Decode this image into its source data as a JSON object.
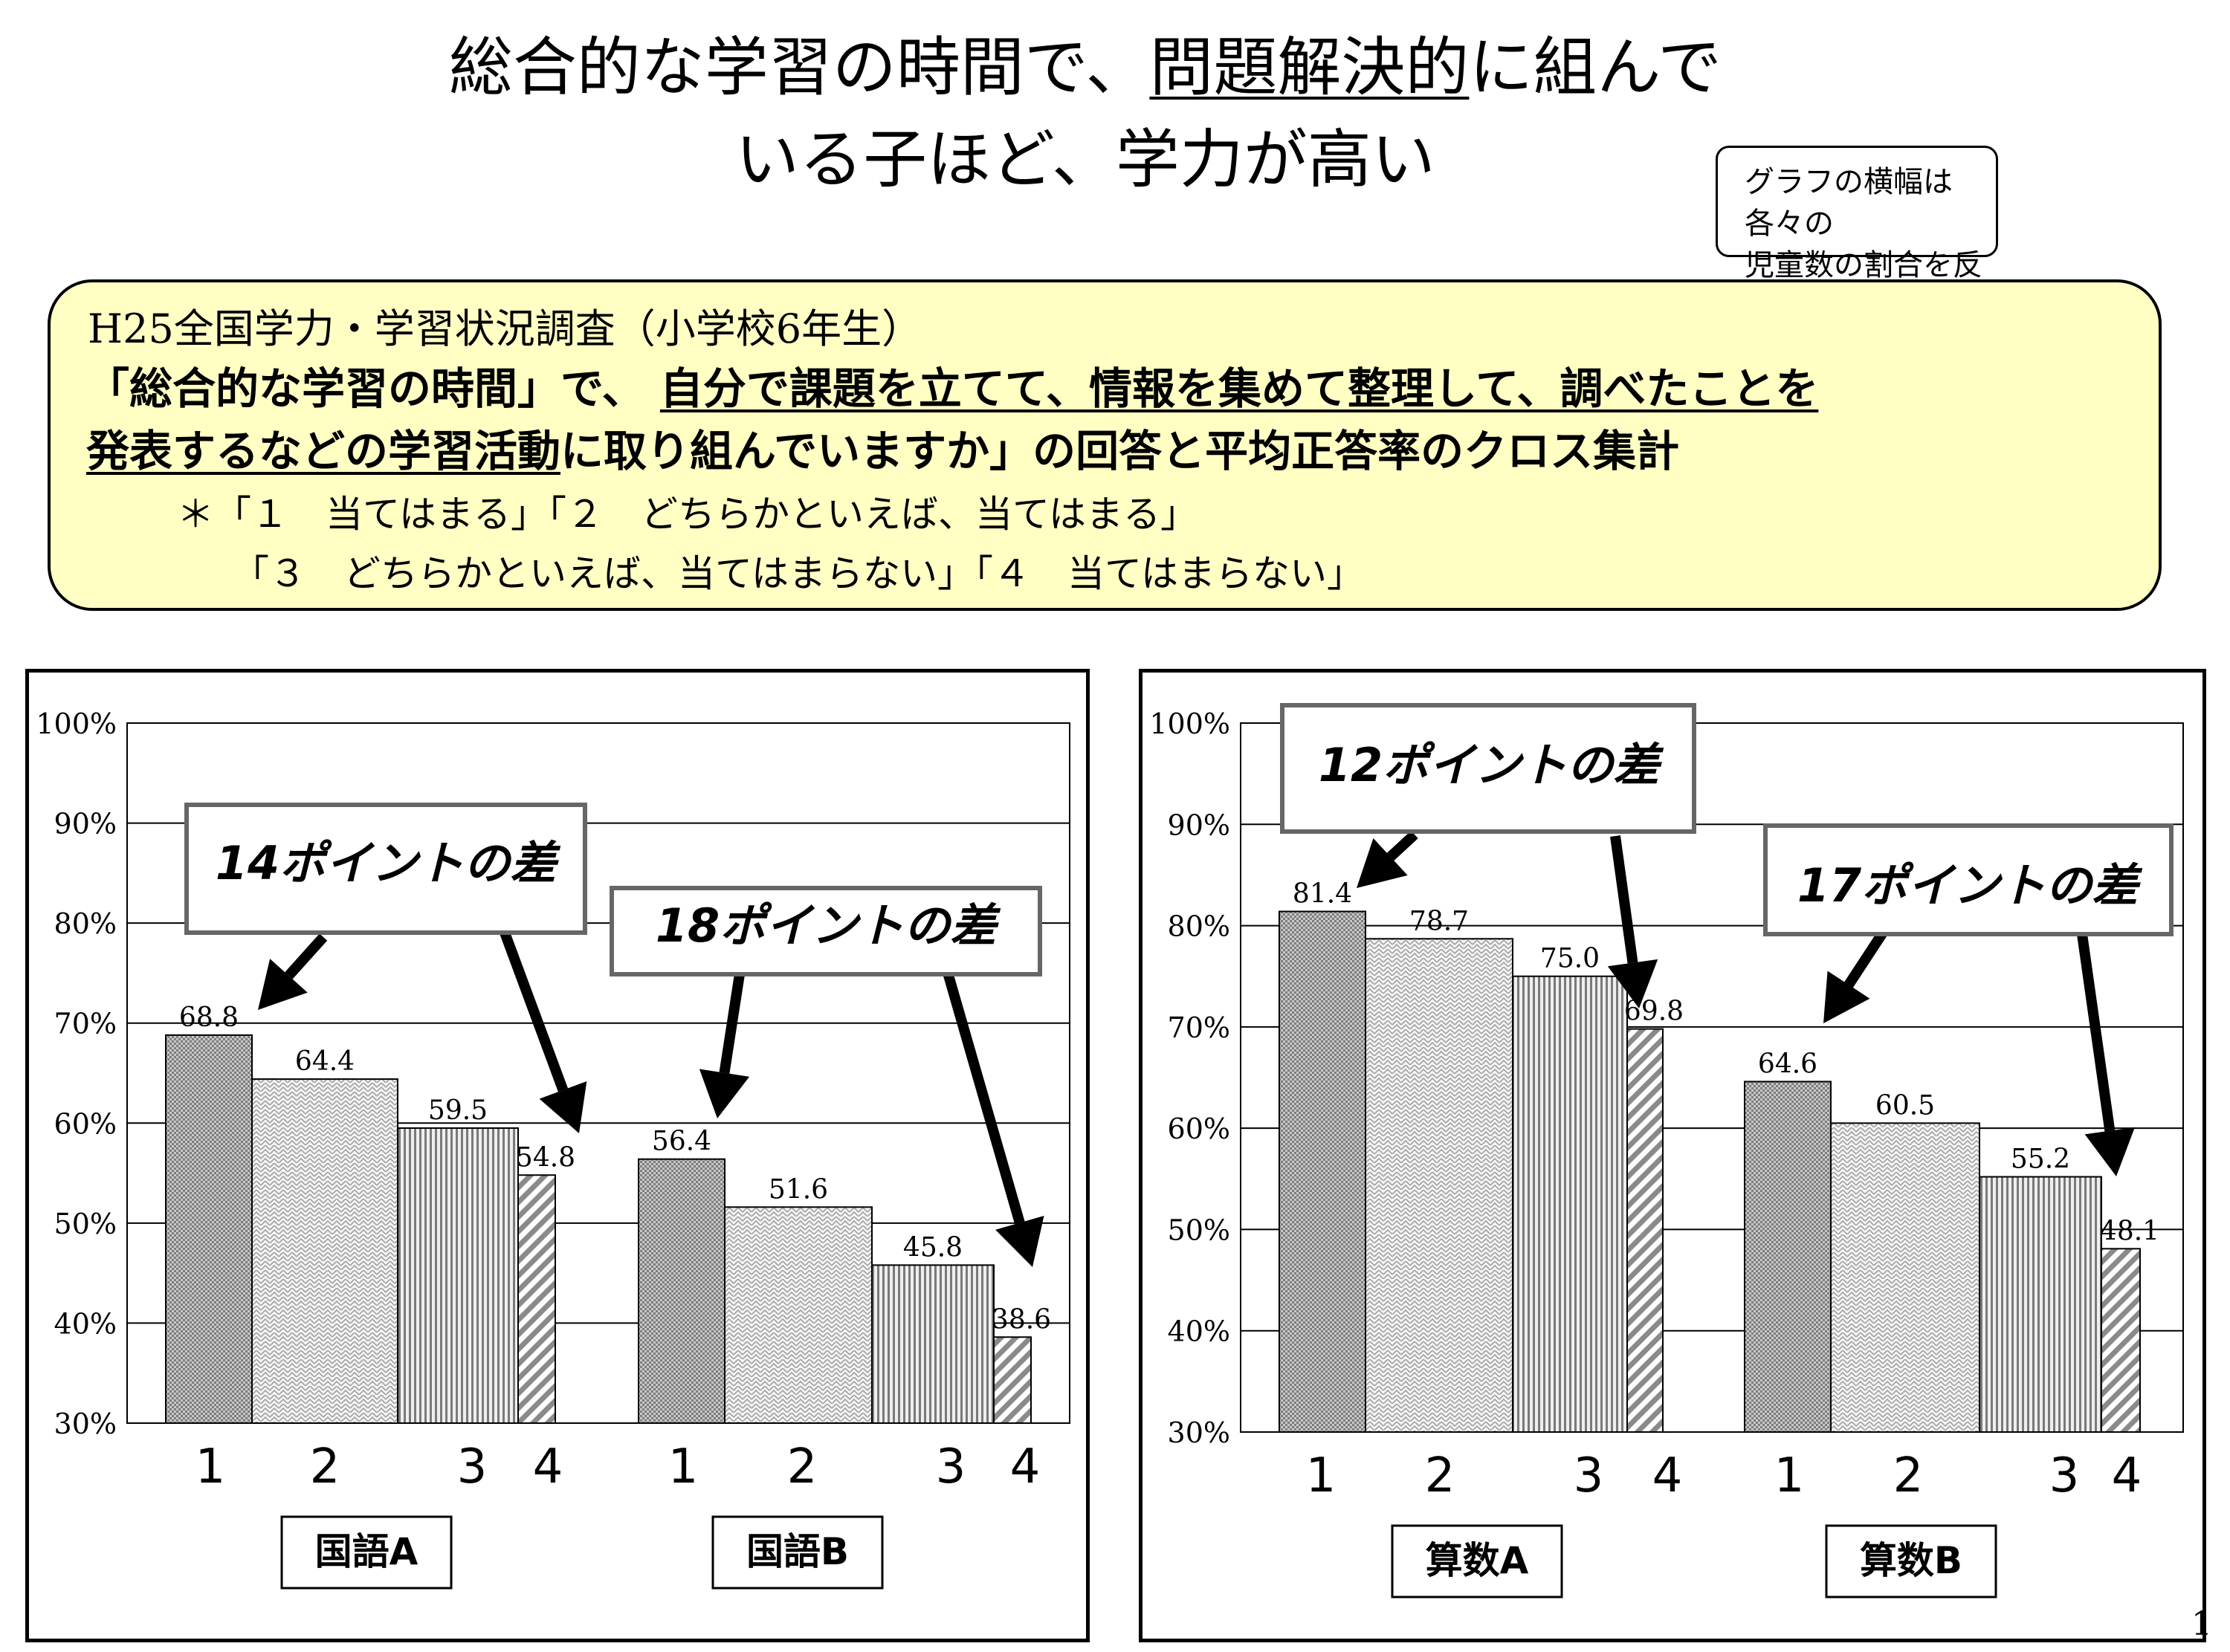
{
  "title": {
    "line1_a": "総合的な学習の時間で、",
    "line1_b": "問題解決的",
    "line1_c": "に組んで",
    "line2": "いる子ほど、学力が高い"
  },
  "note": {
    "line1": "グラフの横幅は各々の",
    "line2": "児童数の割合を反映"
  },
  "description": {
    "line1": "H25全国学力・学習状況調査（小学校6年生）",
    "line2_a": "「総合的な学習の時間」で、",
    "line2_b": "自分で課題を立てて、情報を集めて整理して、調べたことを",
    "line3_a": "発表するなどの学習活動",
    "line3_b": "に取り組んでいますか」の回答と平均正答率のクロス集計",
    "line4": "＊「１　当てはまる」「２　どちらかといえば、当てはまる」",
    "line5": "「３　どちらかといえば、当てはまらない」「４　当てはまらない」"
  },
  "page_number": "1",
  "colors": {
    "desc_bg": "#ffffc4",
    "bar_dark": "#7a7a7a",
    "bar_light": "#cfcfcf"
  },
  "chart_data": [
    {
      "type": "bar",
      "panel": "left",
      "yticks": [
        "100%",
        "90%",
        "80%",
        "70%",
        "60%",
        "50%",
        "40%",
        "30%"
      ],
      "ylim": [
        30,
        100
      ],
      "categories": [
        "1",
        "2",
        "3",
        "4"
      ],
      "groups": [
        {
          "label": "国語A",
          "values": [
            68.8,
            64.4,
            59.5,
            54.8
          ],
          "value_labels": [
            "68.8",
            "64.4",
            "59.5",
            "54.8"
          ]
        },
        {
          "label": "国語B",
          "values": [
            56.4,
            51.6,
            45.8,
            38.6
          ],
          "value_labels": [
            "56.4",
            "51.6",
            "45.8",
            "38.6"
          ]
        }
      ],
      "annotations": [
        "14ポイントの差",
        "18ポイントの差"
      ]
    },
    {
      "type": "bar",
      "panel": "right",
      "yticks": [
        "100%",
        "90%",
        "80%",
        "70%",
        "60%",
        "50%",
        "40%",
        "30%"
      ],
      "ylim": [
        30,
        100
      ],
      "categories": [
        "1",
        "2",
        "3",
        "4"
      ],
      "groups": [
        {
          "label": "算数A",
          "values": [
            81.4,
            78.7,
            75.0,
            69.8
          ],
          "value_labels": [
            "81.4",
            "78.7",
            "75.0",
            "69.8"
          ]
        },
        {
          "label": "算数B",
          "values": [
            64.6,
            60.5,
            55.2,
            48.1
          ],
          "value_labels": [
            "64.6",
            "60.5",
            "55.2",
            "48.1"
          ]
        }
      ],
      "annotations": [
        "12ポイントの差",
        "17ポイントの差"
      ]
    }
  ]
}
